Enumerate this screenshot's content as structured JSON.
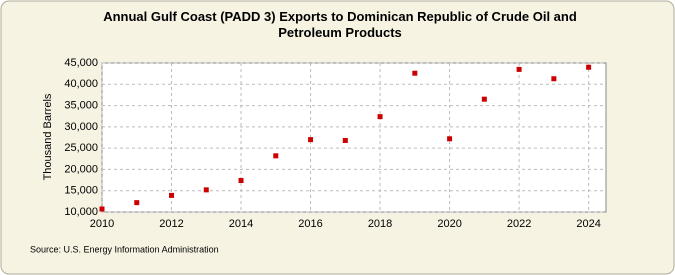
{
  "chart_data": {
    "type": "scatter",
    "title": "Annual Gulf Coast (PADD 3) Exports to Dominican Republic of Crude Oil and Petroleum Products",
    "y_label": "Thousand Barrels",
    "source": "Source: U.S. Energy Information Administration",
    "x": [
      2010,
      2011,
      2012,
      2013,
      2014,
      2015,
      2016,
      2017,
      2018,
      2019,
      2020,
      2021,
      2022,
      2023,
      2024
    ],
    "series": [
      {
        "color": "#cc0000",
        "values": [
          10700,
          12200,
          13900,
          15200,
          17400,
          23200,
          27000,
          26800,
          32400,
          42600,
          27200,
          36500,
          43500,
          41300,
          44000
        ]
      }
    ],
    "xlim": [
      2010,
      2024.5
    ],
    "xticks": [
      2010,
      2012,
      2014,
      2016,
      2018,
      2020,
      2022,
      2024
    ],
    "ylim": [
      10000,
      45000
    ],
    "yticks": [
      {
        "value": 10000,
        "label": "10,000"
      },
      {
        "value": 15000,
        "label": "15,000"
      },
      {
        "value": 20000,
        "label": "20,000"
      },
      {
        "value": 25000,
        "label": "25,000"
      },
      {
        "value": 30000,
        "label": "30,000"
      },
      {
        "value": 35000,
        "label": "35,000"
      },
      {
        "value": 40000,
        "label": "40,000"
      },
      {
        "value": 45000,
        "label": "45,000"
      }
    ],
    "grid": true
  }
}
